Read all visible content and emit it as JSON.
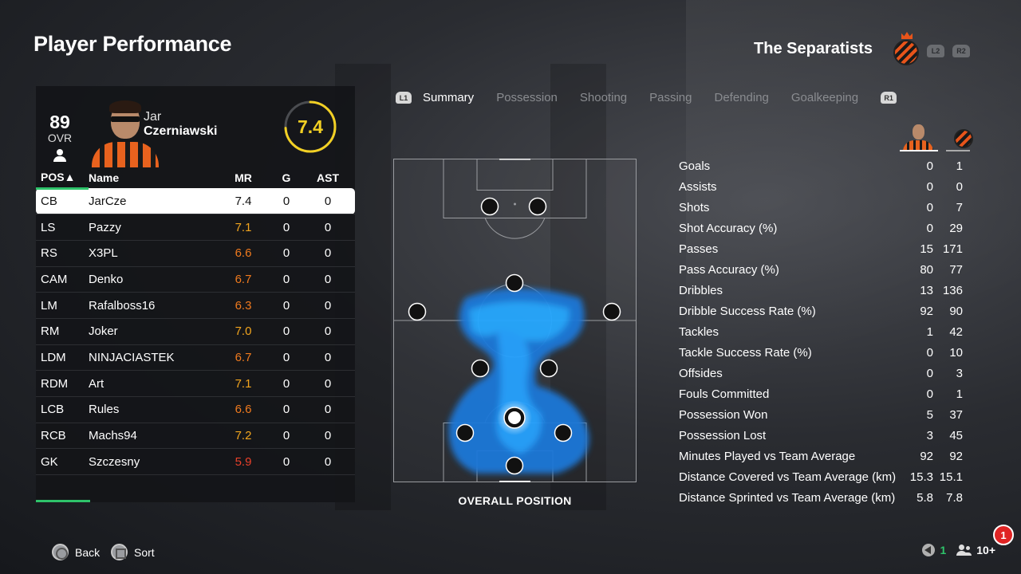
{
  "page_title": "Player Performance",
  "team": {
    "name": "The Separatists",
    "prev_button": "L2",
    "next_button": "R2"
  },
  "player_card": {
    "ovr": "89",
    "ovr_label": "OVR",
    "first_name": "Jar",
    "last_name": "Czerniawski",
    "match_rating": "7.4",
    "match_rating_fraction": 0.74
  },
  "table": {
    "headers": {
      "pos": "POS▲",
      "name": "Name",
      "mr": "MR",
      "g": "G",
      "ast": "AST"
    },
    "rows": [
      {
        "pos": "CB",
        "name": "JarCze",
        "mr": "7.4",
        "g": "0",
        "ast": "0",
        "mr_color": "#111111",
        "selected": true
      },
      {
        "pos": "LS",
        "name": "Pazzy",
        "mr": "7.1",
        "g": "0",
        "ast": "0",
        "mr_color": "#f2a51e"
      },
      {
        "pos": "RS",
        "name": "X3PL",
        "mr": "6.6",
        "g": "0",
        "ast": "0",
        "mr_color": "#f07a1e"
      },
      {
        "pos": "CAM",
        "name": "Denko",
        "mr": "6.7",
        "g": "0",
        "ast": "0",
        "mr_color": "#f07a1e"
      },
      {
        "pos": "LM",
        "name": "Rafalboss16",
        "mr": "6.3",
        "g": "0",
        "ast": "0",
        "mr_color": "#f07a1e"
      },
      {
        "pos": "RM",
        "name": "Joker",
        "mr": "7.0",
        "g": "0",
        "ast": "0",
        "mr_color": "#f2a51e"
      },
      {
        "pos": "LDM",
        "name": "NINJACIASTEK",
        "mr": "6.7",
        "g": "0",
        "ast": "0",
        "mr_color": "#f07a1e"
      },
      {
        "pos": "RDM",
        "name": "Art",
        "mr": "7.1",
        "g": "0",
        "ast": "0",
        "mr_color": "#f2a51e"
      },
      {
        "pos": "LCB",
        "name": "Rules",
        "mr": "6.6",
        "g": "0",
        "ast": "0",
        "mr_color": "#f07a1e"
      },
      {
        "pos": "RCB",
        "name": "Machs94",
        "mr": "7.2",
        "g": "0",
        "ast": "0",
        "mr_color": "#f2a51e"
      },
      {
        "pos": "GK",
        "name": "Szczesny",
        "mr": "5.9",
        "g": "0",
        "ast": "0",
        "mr_color": "#e8402a"
      }
    ]
  },
  "tabs": {
    "left_trigger": "L1",
    "right_trigger": "R1",
    "items": [
      "Summary",
      "Possession",
      "Shooting",
      "Passing",
      "Defending",
      "Goalkeeping"
    ],
    "active": "Summary"
  },
  "pitch": {
    "label": "OVERALL POSITION"
  },
  "stats": [
    {
      "label": "Goals",
      "player": "0",
      "team": "1"
    },
    {
      "label": "Assists",
      "player": "0",
      "team": "0"
    },
    {
      "label": "Shots",
      "player": "0",
      "team": "7"
    },
    {
      "label": "Shot Accuracy (%)",
      "player": "0",
      "team": "29"
    },
    {
      "label": "Passes",
      "player": "15",
      "team": "171"
    },
    {
      "label": "Pass Accuracy (%)",
      "player": "80",
      "team": "77"
    },
    {
      "label": "Dribbles",
      "player": "13",
      "team": "136"
    },
    {
      "label": "Dribble Success Rate (%)",
      "player": "92",
      "team": "90"
    },
    {
      "label": "Tackles",
      "player": "1",
      "team": "42"
    },
    {
      "label": "Tackle Success Rate (%)",
      "player": "0",
      "team": "10"
    },
    {
      "label": "Offsides",
      "player": "0",
      "team": "3"
    },
    {
      "label": "Fouls Committed",
      "player": "0",
      "team": "1"
    },
    {
      "label": "Possession Won",
      "player": "5",
      "team": "37"
    },
    {
      "label": "Possession Lost",
      "player": "3",
      "team": "45"
    },
    {
      "label": "Minutes Played vs Team Average",
      "player": "92",
      "team": "92"
    },
    {
      "label": "Distance Covered vs Team Average (km)",
      "player": "15.3",
      "team": "15.1"
    },
    {
      "label": "Distance Sprinted vs Team Average (km)",
      "player": "5.8",
      "team": "7.8"
    }
  ],
  "footer": {
    "back_label": "Back",
    "sort_label": "Sort",
    "online_count": "1",
    "party_count": "10+",
    "notification_count": "1"
  },
  "colors": {
    "accent_green": "#2ec36a",
    "rating_yellow": "#f2d024",
    "heatmap_blue": "#1e9bff",
    "team_orange": "#e8541a"
  }
}
